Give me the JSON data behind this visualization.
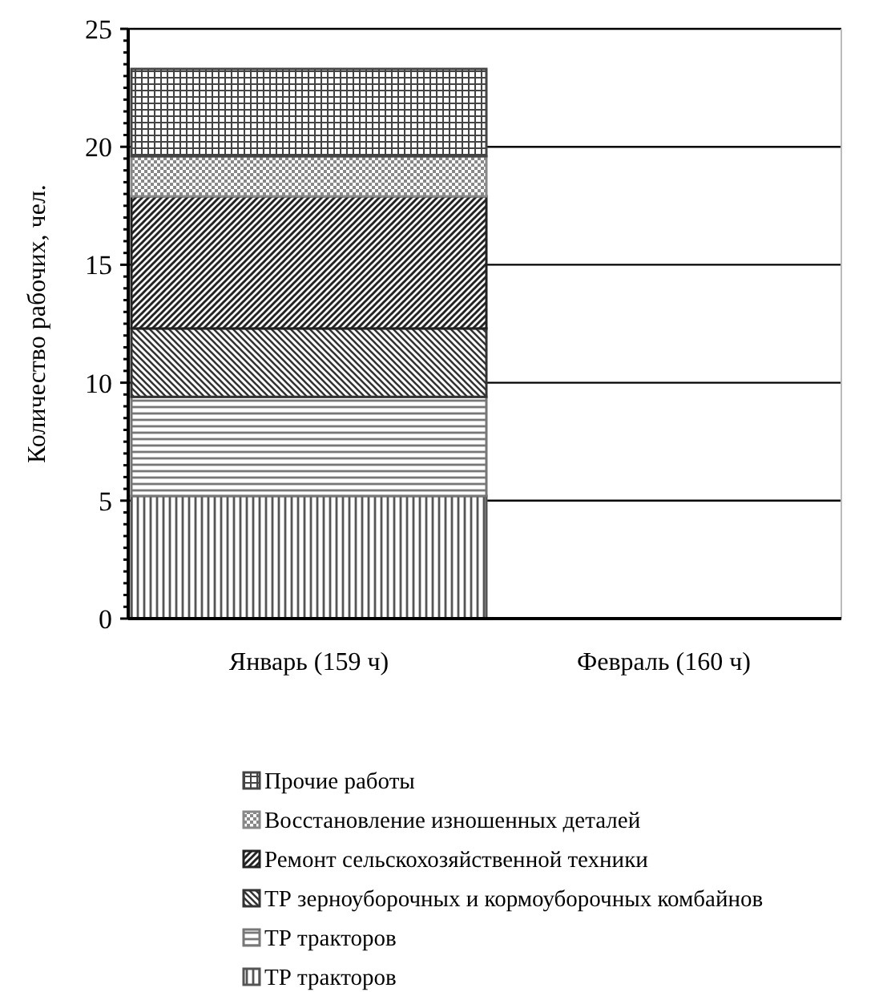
{
  "chart_data": {
    "type": "bar",
    "stacked": true,
    "ylabel": "Количество рабочих, чел.",
    "categories": [
      "Январь (159 ч)",
      "Февраль (160 ч)"
    ],
    "series": [
      {
        "name": "ТР тракторов",
        "color": "#555555",
        "values": [
          5.2,
          null
        ]
      },
      {
        "name": "ТР тракторов",
        "color": "#777777",
        "values": [
          4.2,
          null
        ]
      },
      {
        "name": "ТР зерноуборочных и кормоуборочных комбайнов",
        "color": "#333333",
        "values": [
          2.9,
          null
        ]
      },
      {
        "name": "Ремонт сельскохозяйственной техники",
        "color": "#222222",
        "values": [
          5.6,
          null
        ]
      },
      {
        "name": "Восстановление изношенных деталей",
        "color": "#888888",
        "values": [
          1.7,
          null
        ]
      },
      {
        "name": "Прочие работы",
        "color": "#444444",
        "values": [
          3.7,
          null
        ]
      }
    ],
    "ylim": [
      0,
      25
    ],
    "yticks": [
      0,
      {
        "value": 0.5,
        "label": null
      },
      {
        "value": 1,
        "label": null
      },
      {
        "value": 1.5,
        "label": null
      },
      {
        "value": 2,
        "label": null
      },
      {
        "value": 2.5,
        "label": null
      },
      {
        "value": 3,
        "label": null
      },
      {
        "value": 3.5,
        "label": null
      },
      {
        "value": 4,
        "label": null
      },
      {
        "value": 4.5,
        "label": null
      },
      5,
      {
        "value": 5.5,
        "label": null
      },
      {
        "value": 6,
        "label": null
      },
      {
        "value": 6.5,
        "label": null
      },
      {
        "value": 7,
        "label": null
      },
      {
        "value": 7.5,
        "label": null
      },
      {
        "value": 8,
        "label": null
      },
      {
        "value": 8.5,
        "label": null
      },
      {
        "value": 9,
        "label": null
      },
      {
        "value": 9.5,
        "label": null
      },
      10,
      {
        "value": 10.5,
        "label": null
      },
      {
        "value": 11,
        "label": null
      },
      {
        "value": 11.5,
        "label": null
      },
      {
        "value": 12,
        "label": null
      },
      {
        "value": 12.5,
        "label": null
      },
      {
        "value": 13,
        "label": null
      },
      {
        "value": 13.5,
        "label": null
      },
      {
        "value": 14,
        "label": null
      },
      {
        "value": 14.5,
        "label": null
      },
      15,
      {
        "value": 15.5,
        "label": null
      },
      {
        "value": 16,
        "label": null
      },
      {
        "value": 16.5,
        "label": null
      },
      {
        "value": 17,
        "label": null
      },
      {
        "value": 17.5,
        "label": null
      },
      {
        "value": 18,
        "label": null
      },
      {
        "value": 18.5,
        "label": null
      },
      {
        "value": 19,
        "label": null
      },
      {
        "value": 19.5,
        "label": null
      },
      20,
      {
        "value": 20.5,
        "label": null
      },
      {
        "value": 21,
        "label": null
      },
      {
        "value": 21.5,
        "label": null
      },
      {
        "value": 22,
        "label": null
      },
      {
        "value": 22.5,
        "label": null
      },
      {
        "value": 23,
        "label": null
      },
      {
        "value": 23.5,
        "label": null
      },
      {
        "value": 24,
        "label": null
      },
      {
        "value": 24.5,
        "label": null
      },
      25
    ],
    "grid": "y",
    "legend": "bottom"
  }
}
